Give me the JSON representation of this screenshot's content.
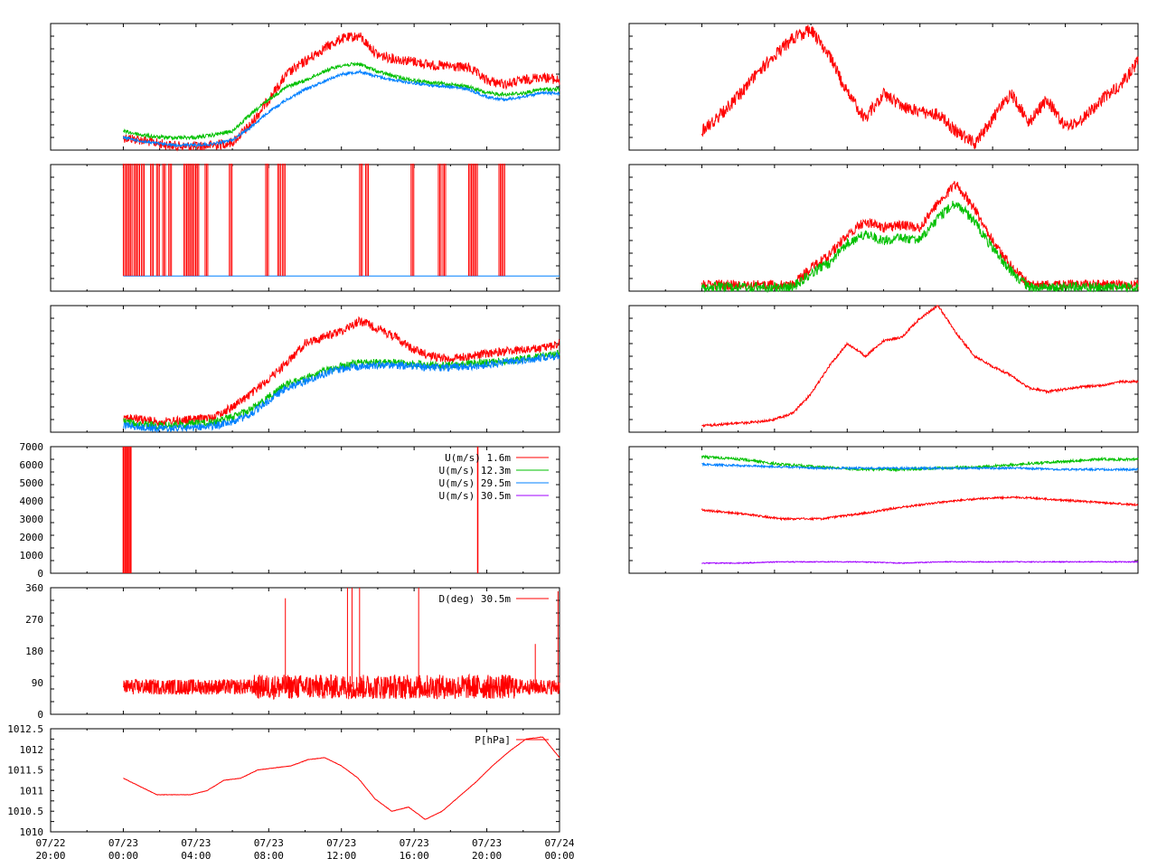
{
  "colors": {
    "red": "#ff0000",
    "green": "#00c000",
    "blue": "#0080ff",
    "purple": "#a000ff",
    "frame": "#000000"
  },
  "x_axis": {
    "start": "07/22 20:00",
    "end": "07/24 00:00",
    "ticks": [
      {
        "date": "07/22",
        "time": "20:00"
      },
      {
        "date": "07/23",
        "time": "00:00"
      },
      {
        "date": "07/23",
        "time": "04:00"
      },
      {
        "date": "07/23",
        "time": "08:00"
      },
      {
        "date": "07/23",
        "time": "12:00"
      },
      {
        "date": "07/23",
        "time": "16:00"
      },
      {
        "date": "07/23",
        "time": "20:00"
      },
      {
        "date": "07/24",
        "time": "00:00"
      }
    ]
  },
  "chart_data": [
    {
      "id": "left-1",
      "type": "line",
      "tick_labels": [],
      "series": [
        {
          "color": "red",
          "x_range": [
            "07/23 00:00",
            "07/24 00:00"
          ],
          "values": [
            0.9,
            0.92,
            0.95,
            0.97,
            0.97,
            0.96,
            0.94,
            0.8,
            0.6,
            0.4,
            0.3,
            0.2,
            0.12,
            0.1,
            0.25,
            0.28,
            0.3,
            0.33,
            0.34,
            0.35,
            0.45,
            0.48,
            0.45,
            0.42,
            0.45
          ],
          "noise": 0.04
        },
        {
          "color": "green",
          "x_range": [
            "07/23 00:00",
            "07/24 00:00"
          ],
          "values": [
            0.85,
            0.88,
            0.9,
            0.9,
            0.9,
            0.88,
            0.85,
            0.72,
            0.6,
            0.5,
            0.45,
            0.38,
            0.33,
            0.32,
            0.38,
            0.42,
            0.45,
            0.47,
            0.48,
            0.5,
            0.55,
            0.56,
            0.55,
            0.52,
            0.52
          ],
          "noise": 0.015
        },
        {
          "color": "blue",
          "x_range": [
            "07/23 00:00",
            "07/24 00:00"
          ],
          "values": [
            0.9,
            0.93,
            0.95,
            0.96,
            0.96,
            0.95,
            0.92,
            0.82,
            0.7,
            0.6,
            0.52,
            0.46,
            0.4,
            0.38,
            0.42,
            0.45,
            0.47,
            0.49,
            0.5,
            0.52,
            0.58,
            0.6,
            0.58,
            0.55,
            0.55
          ],
          "noise": 0.012
        }
      ]
    },
    {
      "id": "left-2",
      "type": "line",
      "tick_labels": [],
      "series": [
        {
          "color": "blue",
          "kind": "flat",
          "x_range": [
            "07/23 00:00",
            "07/24 00:00"
          ],
          "level": 0.88
        },
        {
          "color": "red",
          "kind": "drops",
          "level": 0.88,
          "drop_to": 0.0,
          "spikes": [
            "07/23 00:00",
            "07/23 00:10",
            "07/23 00:20",
            "07/23 00:35",
            "07/23 00:45",
            "07/23 01:00",
            "07/23 01:30",
            "07/23 01:50",
            "07/23 02:10",
            "07/23 02:30",
            "07/23 03:20",
            "07/23 03:30",
            "07/23 03:40",
            "07/23 03:50",
            "07/23 04:00",
            "07/23 04:30",
            "07/23 05:50",
            "07/23 07:50",
            "07/23 08:30",
            "07/23 08:45",
            "07/23 13:00",
            "07/23 13:20",
            "07/23 15:50",
            "07/23 17:20",
            "07/23 17:35",
            "07/23 19:00",
            "07/23 19:10",
            "07/23 19:20",
            "07/23 20:40",
            "07/23 20:50"
          ]
        }
      ]
    },
    {
      "id": "left-3",
      "type": "line",
      "tick_labels": [],
      "series": [
        {
          "color": "red",
          "x_range": [
            "07/23 00:00",
            "07/24 00:00"
          ],
          "values": [
            0.88,
            0.9,
            0.92,
            0.91,
            0.9,
            0.88,
            0.8,
            0.7,
            0.58,
            0.45,
            0.3,
            0.25,
            0.2,
            0.12,
            0.18,
            0.25,
            0.35,
            0.4,
            0.42,
            0.4,
            0.38,
            0.36,
            0.35,
            0.34,
            0.3
          ],
          "noise": 0.035
        },
        {
          "color": "green",
          "x_range": [
            "07/23 00:00",
            "07/24 00:00"
          ],
          "values": [
            0.92,
            0.94,
            0.95,
            0.94,
            0.93,
            0.92,
            0.88,
            0.82,
            0.72,
            0.62,
            0.58,
            0.52,
            0.48,
            0.45,
            0.45,
            0.45,
            0.46,
            0.47,
            0.47,
            0.46,
            0.45,
            0.44,
            0.42,
            0.4,
            0.38
          ],
          "noise": 0.03
        },
        {
          "color": "blue",
          "x_range": [
            "07/23 00:00",
            "07/24 00:00"
          ],
          "values": [
            0.94,
            0.96,
            0.97,
            0.97,
            0.96,
            0.95,
            0.92,
            0.86,
            0.75,
            0.65,
            0.6,
            0.54,
            0.5,
            0.48,
            0.47,
            0.47,
            0.48,
            0.49,
            0.49,
            0.48,
            0.47,
            0.45,
            0.43,
            0.41,
            0.4
          ],
          "noise": 0.03
        }
      ]
    },
    {
      "id": "left-4",
      "type": "line",
      "ylim": [
        0,
        7000
      ],
      "tick_labels": [
        "0",
        "1000",
        "2000",
        "3000",
        "4000",
        "5000",
        "6000",
        "7000"
      ],
      "legend": [
        {
          "label": "U(m/s)  1.6m",
          "color": "red"
        },
        {
          "label": "U(m/s) 12.3m",
          "color": "green"
        },
        {
          "label": "U(m/s) 29.5m",
          "color": "blue"
        },
        {
          "label": "U(m/s) 30.5m",
          "color": "purple"
        }
      ],
      "series": [
        {
          "color": "red",
          "kind": "bars",
          "level": 7000,
          "spikes": [
            "07/23 00:00",
            "07/23 00:05",
            "07/23 00:10",
            "07/23 00:15",
            "07/23 00:20",
            "07/23 00:25",
            "07/23 19:30"
          ]
        }
      ]
    },
    {
      "id": "left-5",
      "type": "line",
      "ylim": [
        0,
        360
      ],
      "tick_labels": [
        "0",
        "90",
        "180",
        "270",
        "360"
      ],
      "legend": [
        {
          "label": "D(deg)  30.5m",
          "color": "red"
        }
      ],
      "series": [
        {
          "color": "red",
          "kind": "noise",
          "x_range": [
            "07/23 00:00",
            "07/24 00:00"
          ],
          "center": 78,
          "spread": 22,
          "extra_spread": 35,
          "spikes": [
            {
              "x": "07/23 08:55",
              "y": 330
            },
            {
              "x": "07/23 12:20",
              "y": 360
            },
            {
              "x": "07/23 12:35",
              "y": 360
            },
            {
              "x": "07/23 13:00",
              "y": 360
            },
            {
              "x": "07/23 16:15",
              "y": 360
            },
            {
              "x": "07/23 22:40",
              "y": 200
            },
            {
              "x": "07/23 23:55",
              "y": 350
            }
          ]
        }
      ]
    },
    {
      "id": "left-6",
      "type": "line",
      "ylim": [
        1010,
        1012.5
      ],
      "tick_labels": [
        "1010",
        "1010.5",
        "1011",
        "1011.5",
        "1012",
        "1012.5"
      ],
      "legend": [
        {
          "label": "P[hPa]",
          "color": "red"
        }
      ],
      "series": [
        {
          "color": "red",
          "x_range": [
            "07/23 00:00",
            "07/24 00:00"
          ],
          "values": [
            1011.3,
            1011.1,
            1010.9,
            1010.9,
            1010.9,
            1011.0,
            1011.25,
            1011.3,
            1011.5,
            1011.55,
            1011.6,
            1011.75,
            1011.8,
            1011.6,
            1011.3,
            1010.8,
            1010.5,
            1010.6,
            1010.3,
            1010.5,
            1010.85,
            1011.2,
            1011.6,
            1011.95,
            1012.25,
            1012.3,
            1011.8
          ],
          "noise": 0.02
        }
      ]
    },
    {
      "id": "right-1",
      "type": "line",
      "tick_labels": [],
      "series": [
        {
          "color": "red",
          "x_range": [
            "07/23 00:00",
            "07/24 00:00"
          ],
          "values": [
            0.85,
            0.72,
            0.58,
            0.4,
            0.25,
            0.12,
            0.05,
            0.25,
            0.55,
            0.75,
            0.55,
            0.65,
            0.7,
            0.72,
            0.85,
            0.95,
            0.75,
            0.55,
            0.78,
            0.6,
            0.82,
            0.75,
            0.6,
            0.5,
            0.3
          ],
          "noise": 0.05
        }
      ]
    },
    {
      "id": "right-2",
      "type": "line",
      "tick_labels": [],
      "series": [
        {
          "color": "red",
          "x_range": [
            "07/23 00:00",
            "07/24 00:00"
          ],
          "values": [
            0.95,
            0.95,
            0.95,
            0.95,
            0.95,
            0.95,
            0.82,
            0.72,
            0.55,
            0.45,
            0.5,
            0.48,
            0.5,
            0.3,
            0.15,
            0.35,
            0.6,
            0.8,
            0.95,
            0.95,
            0.95,
            0.95,
            0.95,
            0.95,
            0.95
          ],
          "noise": 0.04
        },
        {
          "color": "green",
          "x_range": [
            "07/23 00:00",
            "07/24 00:00"
          ],
          "values": [
            0.97,
            0.97,
            0.97,
            0.97,
            0.97,
            0.97,
            0.86,
            0.78,
            0.62,
            0.55,
            0.6,
            0.58,
            0.6,
            0.42,
            0.3,
            0.45,
            0.66,
            0.84,
            0.97,
            0.97,
            0.97,
            0.97,
            0.97,
            0.97,
            0.97
          ],
          "noise": 0.04
        }
      ]
    },
    {
      "id": "right-3",
      "type": "line",
      "tick_labels": [],
      "series": [
        {
          "color": "red",
          "x_range": [
            "07/23 00:00",
            "07/24 00:00"
          ],
          "values": [
            0.95,
            0.94,
            0.93,
            0.92,
            0.9,
            0.85,
            0.7,
            0.48,
            0.3,
            0.4,
            0.28,
            0.25,
            0.1,
            0.0,
            0.22,
            0.4,
            0.48,
            0.55,
            0.65,
            0.68,
            0.66,
            0.64,
            0.63,
            0.6,
            0.6
          ],
          "noise": 0.01
        }
      ]
    },
    {
      "id": "right-4",
      "type": "line",
      "tick_labels": [],
      "series": [
        {
          "color": "green",
          "x_range": [
            "07/23 00:00",
            "07/24 00:00"
          ],
          "values": [
            0.08,
            0.1,
            0.14,
            0.16,
            0.18,
            0.18,
            0.17,
            0.16,
            0.14,
            0.12,
            0.1,
            0.1
          ],
          "noise": 0.01
        },
        {
          "color": "blue",
          "x_range": [
            "07/23 00:00",
            "07/24 00:00"
          ],
          "values": [
            0.14,
            0.15,
            0.16,
            0.17,
            0.17,
            0.17,
            0.17,
            0.17,
            0.17,
            0.18,
            0.18,
            0.18
          ],
          "noise": 0.008
        },
        {
          "color": "red",
          "x_range": [
            "07/23 00:00",
            "07/24 00:00"
          ],
          "values": [
            0.5,
            0.53,
            0.57,
            0.57,
            0.53,
            0.48,
            0.44,
            0.41,
            0.4,
            0.42,
            0.44,
            0.46
          ],
          "noise": 0.008
        },
        {
          "color": "purple",
          "x_range": [
            "07/23 00:00",
            "07/24 00:00"
          ],
          "values": [
            0.92,
            0.92,
            0.91,
            0.91,
            0.91,
            0.92,
            0.91,
            0.91,
            0.91,
            0.91,
            0.91,
            0.91
          ],
          "noise": 0.004
        }
      ]
    }
  ]
}
